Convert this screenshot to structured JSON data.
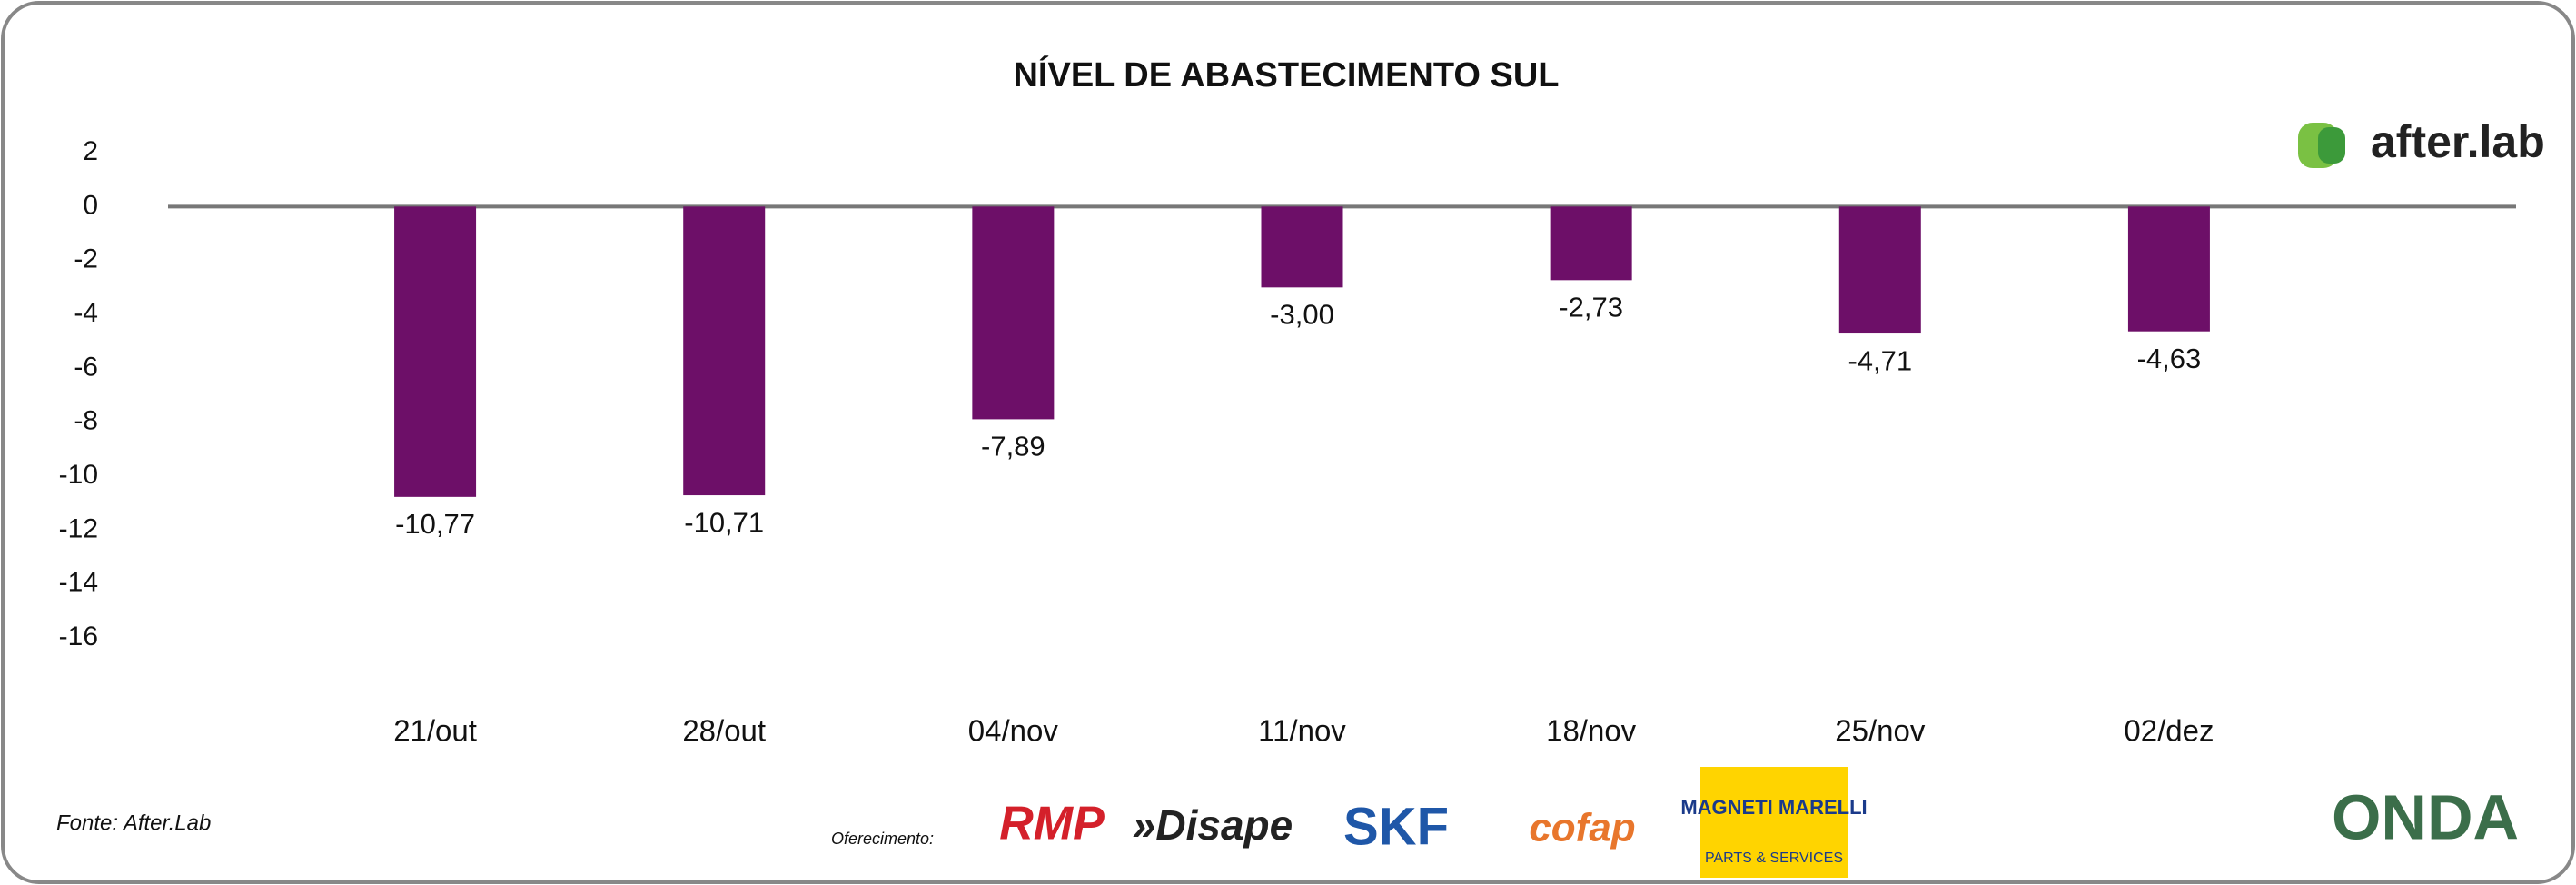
{
  "chart_data": {
    "type": "bar",
    "title": "NÍVEL DE ABASTECIMENTO SUL",
    "categories": [
      "21/out",
      "28/out",
      "04/nov",
      "11/nov",
      "18/nov",
      "25/nov",
      "02/dez"
    ],
    "values": [
      -10.77,
      -10.71,
      -7.89,
      -3.0,
      -2.73,
      -4.71,
      -4.63
    ],
    "value_labels": [
      "-10,77",
      "-10,71",
      "-7,89",
      "-3,00",
      "-2,73",
      "-4,71",
      "-4,63"
    ],
    "color": "#6d0f68",
    "ylim": [
      -16,
      2
    ],
    "yticks": [
      2,
      0,
      -2,
      -4,
      -6,
      -8,
      -10,
      -12,
      -14,
      -16
    ]
  },
  "footer": {
    "source": "Fonte: After.Lab",
    "sponsor_label": "Oferecimento:",
    "brand": "after.lab",
    "sponsors": [
      "RMP",
      "»Disape",
      "SKF",
      "cofap",
      "MAGNETI MARELLI",
      "PARTS & SERVICES"
    ],
    "partner": "ONDA"
  }
}
